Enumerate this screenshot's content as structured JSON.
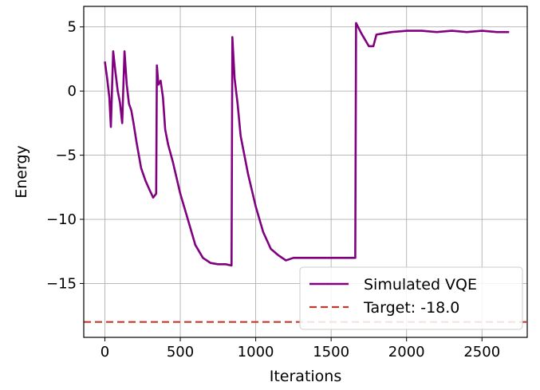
{
  "chart_data": {
    "type": "line",
    "xlabel": "Iterations",
    "ylabel": "Energy",
    "xlim": [
      -140,
      2800
    ],
    "ylim": [
      -19.2,
      6.6
    ],
    "xticks": [
      0,
      500,
      1000,
      1500,
      2000,
      2500
    ],
    "xtick_labels": [
      "0",
      "500",
      "1000",
      "1500",
      "2000",
      "2500"
    ],
    "yticks": [
      5,
      0,
      -5,
      -10,
      -15
    ],
    "ytick_labels": [
      "5",
      "0",
      "−5",
      "−10",
      "−15"
    ],
    "grid": true,
    "legend_position": "lower-right",
    "series": [
      {
        "name": "Simulated VQE",
        "color": "#800080",
        "style": "solid",
        "x": [
          0,
          15,
          30,
          40,
          55,
          70,
          85,
          100,
          115,
          130,
          145,
          160,
          175,
          190,
          210,
          240,
          270,
          300,
          320,
          340,
          345,
          355,
          370,
          385,
          400,
          420,
          450,
          500,
          550,
          600,
          650,
          700,
          750,
          800,
          840,
          845,
          860,
          880,
          900,
          950,
          1000,
          1050,
          1100,
          1150,
          1200,
          1250,
          1300,
          1400,
          1500,
          1600,
          1660,
          1665,
          1700,
          1750,
          1780,
          1800,
          1850,
          1900,
          2000,
          2100,
          2200,
          2300,
          2400,
          2500,
          2600,
          2680
        ],
        "y": [
          2.3,
          1.0,
          -0.5,
          -2.8,
          3.1,
          1.5,
          0.0,
          -0.9,
          -2.5,
          3.1,
          0.5,
          -1.0,
          -1.5,
          -2.5,
          -4.0,
          -6.0,
          -7.0,
          -7.8,
          -8.3,
          -8.0,
          2.0,
          0.5,
          0.8,
          -0.5,
          -3.0,
          -4.2,
          -5.5,
          -8.0,
          -10.0,
          -12.0,
          -13.0,
          -13.4,
          -13.5,
          -13.5,
          -13.6,
          4.2,
          1.0,
          -1.0,
          -3.5,
          -6.5,
          -9.0,
          -11.0,
          -12.3,
          -12.8,
          -13.2,
          -13.0,
          -13.0,
          -13.0,
          -13.0,
          -13.0,
          -13.0,
          5.3,
          4.5,
          3.5,
          3.5,
          4.4,
          4.5,
          4.6,
          4.7,
          4.7,
          4.6,
          4.7,
          4.6,
          4.7,
          4.6,
          4.6
        ]
      },
      {
        "name": "Target: -18.0",
        "color": "#c0392b",
        "style": "dashed",
        "x": [
          -140,
          2800
        ],
        "y": [
          -18.0,
          -18.0
        ]
      }
    ]
  }
}
